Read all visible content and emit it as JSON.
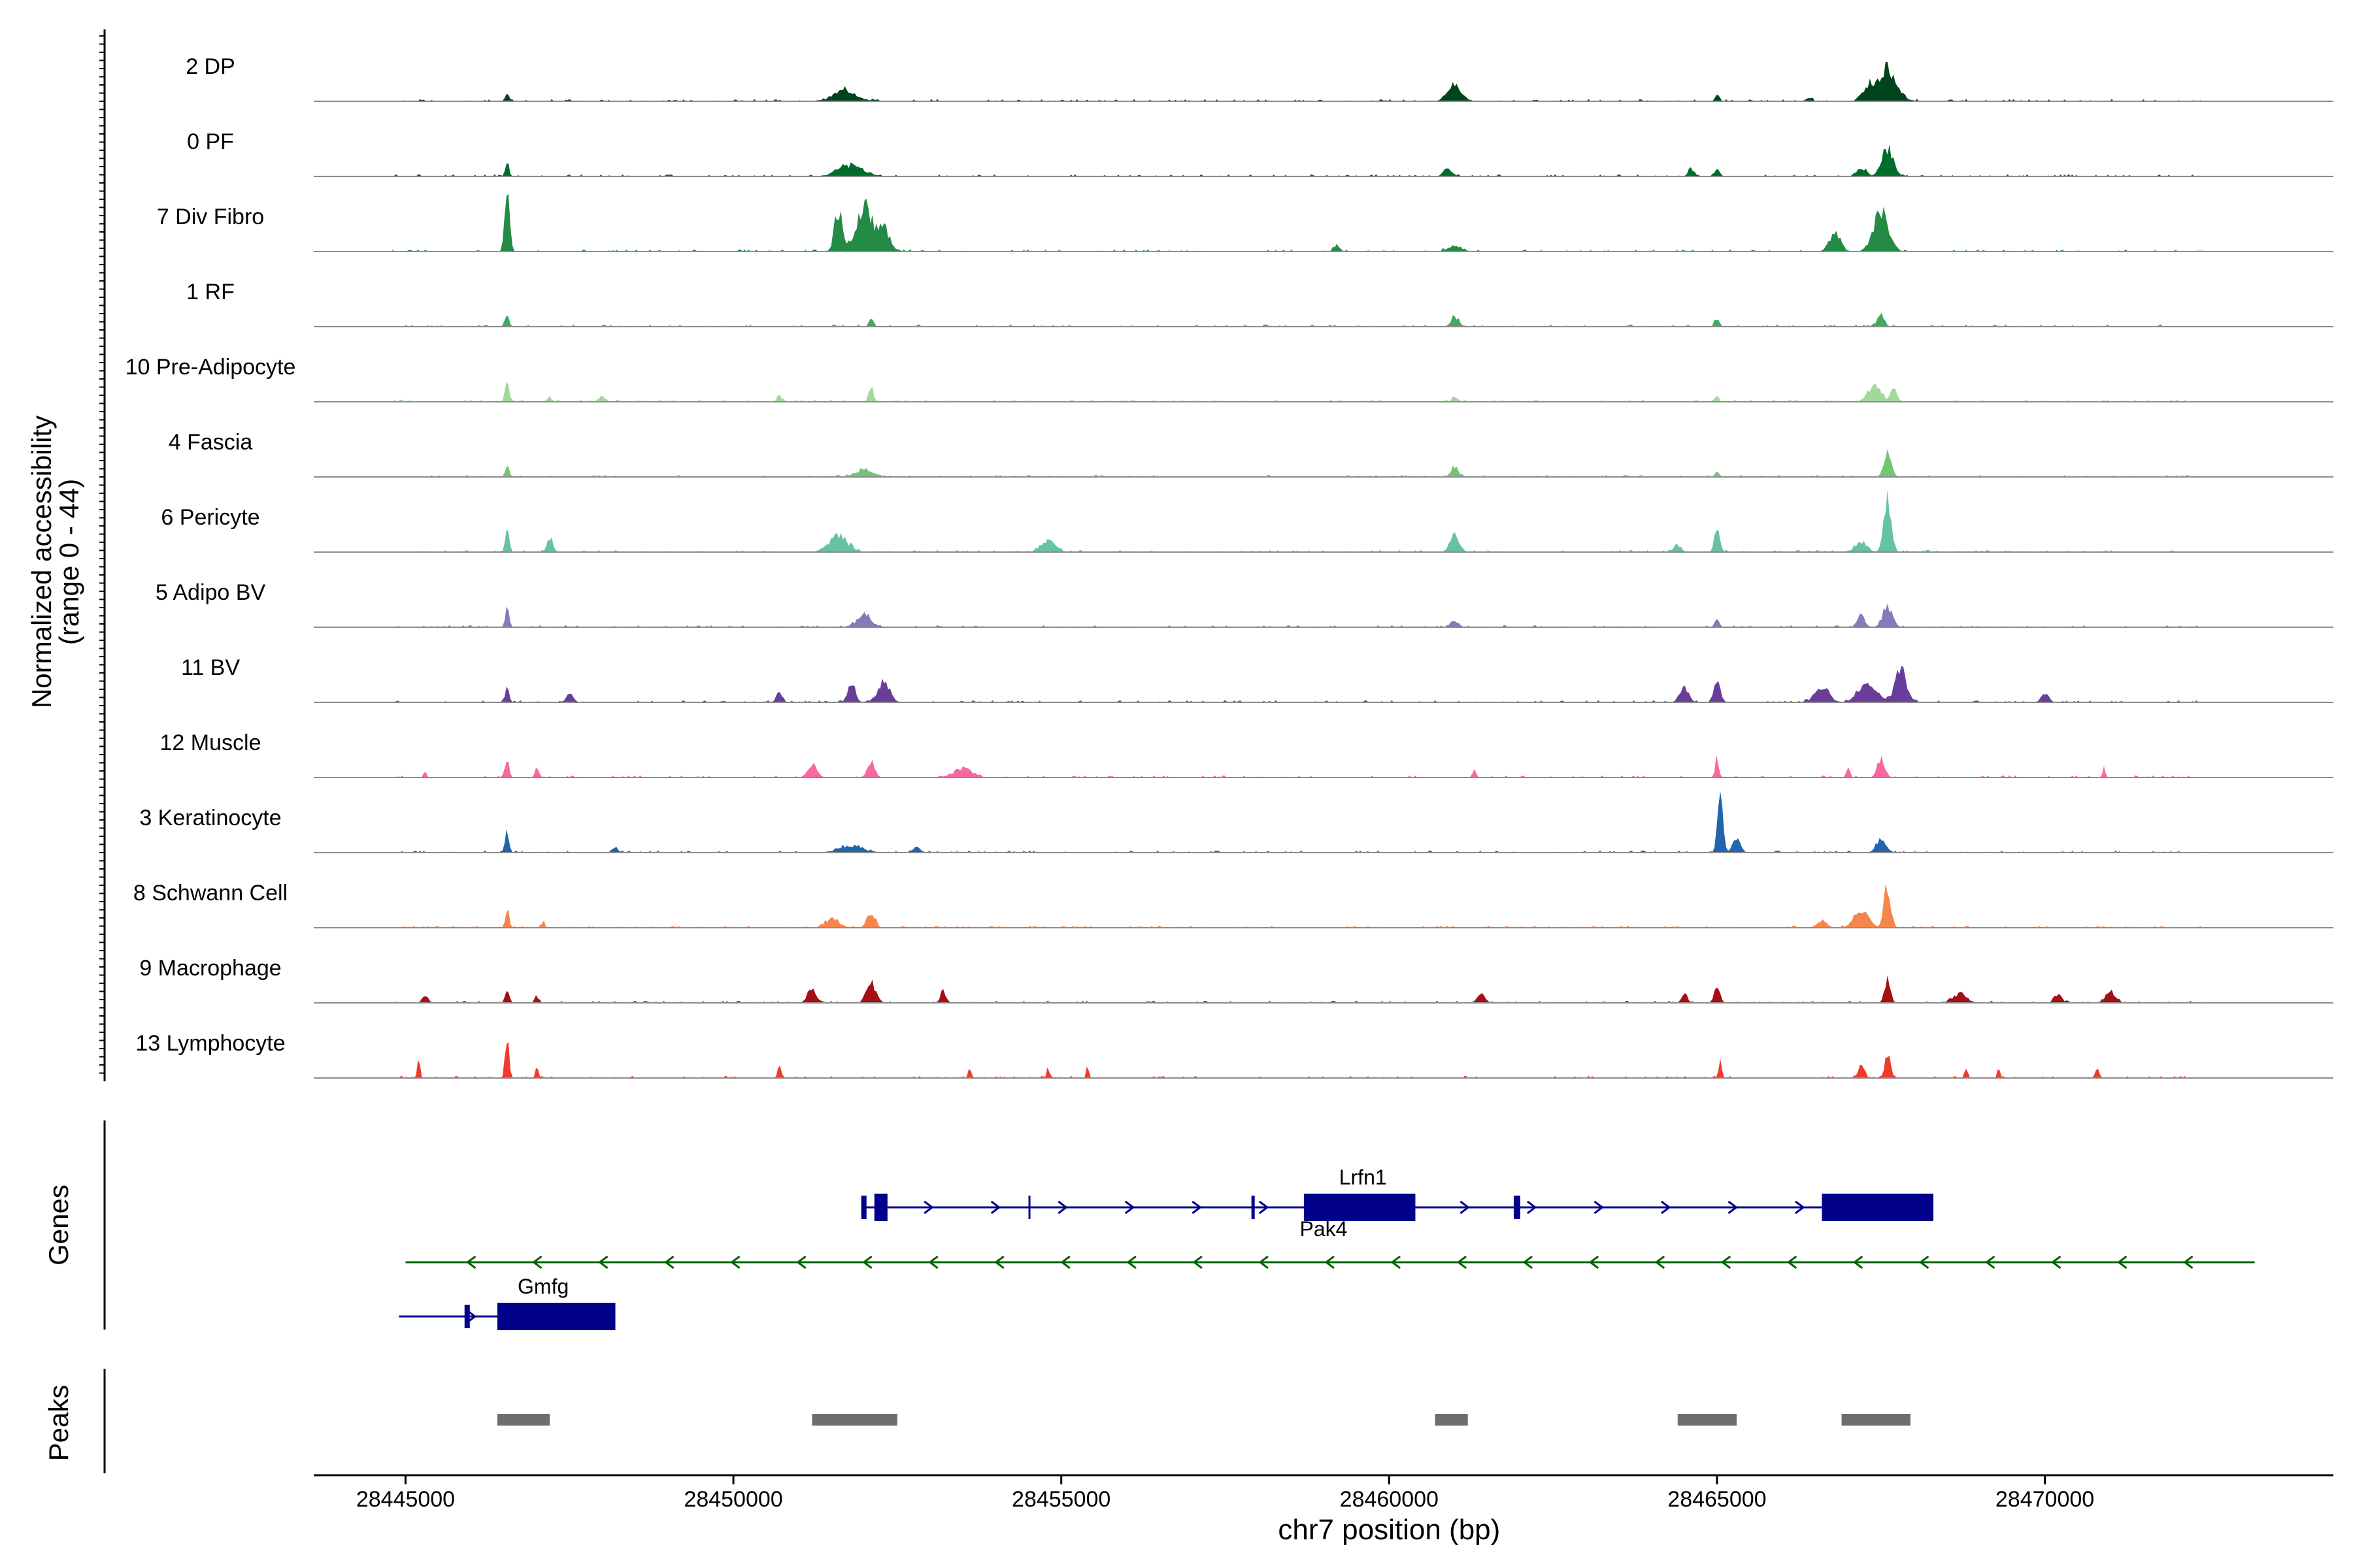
{
  "chart_data": {
    "type": "area",
    "title": "",
    "xlabel": "chr7 position (bp)",
    "ylabel": "Normalized accessibility",
    "ylabel_range": "(range 0 - 44)",
    "xlim": [
      28443600,
      28474400
    ],
    "ylim": [
      0,
      44
    ],
    "x_ticks": [
      28445000,
      28450000,
      28455000,
      28460000,
      28465000,
      28470000
    ],
    "x_tick_labels": [
      "28445000",
      "28450000",
      "28455000",
      "28460000",
      "28465000",
      "28470000"
    ],
    "tracks": [
      {
        "name": "2 DP",
        "color": "#00441b",
        "peaks": [
          [
            28446550,
            0.28,
            40
          ],
          [
            28451700,
            0.3,
            250
          ],
          [
            28461000,
            0.45,
            150
          ],
          [
            28465000,
            0.15,
            40
          ],
          [
            28467600,
            0.9,
            200
          ],
          [
            28467300,
            0.4,
            120
          ],
          [
            28466400,
            0.1,
            60
          ]
        ]
      },
      {
        "name": "0 PF",
        "color": "#006d2c",
        "peaks": [
          [
            28446550,
            0.38,
            40
          ],
          [
            28451800,
            0.3,
            280
          ],
          [
            28460900,
            0.22,
            100
          ],
          [
            28464600,
            0.22,
            60
          ],
          [
            28465000,
            0.22,
            50
          ],
          [
            28467600,
            0.8,
            120
          ],
          [
            28467200,
            0.25,
            100
          ]
        ]
      },
      {
        "name": "7 Div Fibro",
        "color": "#238b45",
        "peaks": [
          [
            28446550,
            1.9,
            50
          ],
          [
            28451600,
            1.2,
            80
          ],
          [
            28452000,
            1.2,
            180
          ],
          [
            28461000,
            0.15,
            150
          ],
          [
            28466800,
            0.5,
            120
          ],
          [
            28467500,
            1.1,
            160
          ],
          [
            28459200,
            0.2,
            60
          ],
          [
            28452300,
            0.6,
            120
          ]
        ]
      },
      {
        "name": "1 RF",
        "color": "#41ab5d",
        "peaks": [
          [
            28446550,
            0.4,
            40
          ],
          [
            28452100,
            0.25,
            40
          ],
          [
            28461000,
            0.3,
            80
          ],
          [
            28465000,
            0.25,
            50
          ],
          [
            28467500,
            0.35,
            70
          ]
        ]
      },
      {
        "name": "10 Pre-Adipocyte",
        "color": "#a1d99b",
        "peaks": [
          [
            28446550,
            0.55,
            40
          ],
          [
            28447200,
            0.2,
            30
          ],
          [
            28450700,
            0.2,
            50
          ],
          [
            28452100,
            0.4,
            50
          ],
          [
            28461000,
            0.15,
            60
          ],
          [
            28465000,
            0.2,
            40
          ],
          [
            28467400,
            0.45,
            140
          ],
          [
            28467700,
            0.5,
            60
          ],
          [
            28448000,
            0.15,
            60
          ]
        ]
      },
      {
        "name": "4 Fascia",
        "color": "#74c476",
        "peaks": [
          [
            28446550,
            0.38,
            40
          ],
          [
            28452000,
            0.2,
            200
          ],
          [
            28461000,
            0.3,
            80
          ],
          [
            28465000,
            0.15,
            40
          ],
          [
            28467600,
            0.65,
            80
          ]
        ]
      },
      {
        "name": "6 Pericyte",
        "color": "#66c2a4",
        "peaks": [
          [
            28446550,
            0.7,
            40
          ],
          [
            28447200,
            0.4,
            60
          ],
          [
            28451600,
            0.45,
            200
          ],
          [
            28461000,
            0.45,
            100
          ],
          [
            28465000,
            0.6,
            60
          ],
          [
            28467600,
            1.5,
            80
          ],
          [
            28467200,
            0.3,
            120
          ],
          [
            28454800,
            0.35,
            150
          ],
          [
            28464400,
            0.2,
            80
          ]
        ]
      },
      {
        "name": "5 Adipo BV",
        "color": "#807dba",
        "peaks": [
          [
            28446550,
            0.55,
            40
          ],
          [
            28452000,
            0.35,
            150
          ],
          [
            28461000,
            0.2,
            80
          ],
          [
            28465000,
            0.2,
            50
          ],
          [
            28467600,
            0.6,
            100
          ],
          [
            28467200,
            0.3,
            80
          ]
        ]
      },
      {
        "name": "11 BV",
        "color": "#6a3d9a",
        "peaks": [
          [
            28446550,
            0.4,
            40
          ],
          [
            28452300,
            0.6,
            120
          ],
          [
            28451800,
            0.5,
            80
          ],
          [
            28450700,
            0.3,
            60
          ],
          [
            28465000,
            0.7,
            60
          ],
          [
            28464500,
            0.4,
            100
          ],
          [
            28467300,
            0.5,
            200
          ],
          [
            28467800,
            0.9,
            120
          ],
          [
            28466600,
            0.4,
            150
          ],
          [
            28470000,
            0.25,
            80
          ],
          [
            28447500,
            0.2,
            80
          ]
        ]
      },
      {
        "name": "12 Muscle",
        "color": "#f768a1",
        "peaks": [
          [
            28446550,
            0.55,
            40
          ],
          [
            28447000,
            0.3,
            40
          ],
          [
            28451200,
            0.35,
            100
          ],
          [
            28452100,
            0.45,
            80
          ],
          [
            28453500,
            0.25,
            200
          ],
          [
            28465000,
            0.55,
            40
          ],
          [
            28467500,
            0.55,
            80
          ],
          [
            28467000,
            0.25,
            40
          ],
          [
            28461300,
            0.2,
            40
          ],
          [
            28470900,
            0.25,
            30
          ],
          [
            28445300,
            0.15,
            30
          ]
        ]
      },
      {
        "name": "3 Keratinocyte",
        "color": "#2166ac",
        "peaks": [
          [
            28446550,
            0.6,
            40
          ],
          [
            28465050,
            1.5,
            60
          ],
          [
            28465300,
            0.4,
            80
          ],
          [
            28467500,
            0.35,
            100
          ],
          [
            28451800,
            0.2,
            250
          ],
          [
            28448200,
            0.15,
            60
          ],
          [
            28452800,
            0.15,
            80
          ]
        ]
      },
      {
        "name": "8 Schwann Cell",
        "color": "#f4874b",
        "peaks": [
          [
            28446550,
            0.55,
            40
          ],
          [
            28447100,
            0.2,
            30
          ],
          [
            28452100,
            0.45,
            80
          ],
          [
            28451500,
            0.25,
            150
          ],
          [
            28467600,
            1.2,
            70
          ],
          [
            28467200,
            0.5,
            150
          ],
          [
            28466600,
            0.2,
            100
          ]
        ]
      },
      {
        "name": "9 Macrophage",
        "color": "#a50f15",
        "peaks": [
          [
            28446550,
            0.45,
            40
          ],
          [
            28445300,
            0.2,
            60
          ],
          [
            28451200,
            0.35,
            100
          ],
          [
            28452100,
            0.55,
            100
          ],
          [
            28453200,
            0.35,
            60
          ],
          [
            28461400,
            0.25,
            80
          ],
          [
            28465000,
            0.55,
            60
          ],
          [
            28464500,
            0.3,
            60
          ],
          [
            28467600,
            0.65,
            60
          ],
          [
            28468700,
            0.25,
            150
          ],
          [
            28471000,
            0.3,
            100
          ],
          [
            28447000,
            0.2,
            40
          ],
          [
            28470200,
            0.25,
            80
          ]
        ]
      },
      {
        "name": "13 Lymphocyte",
        "color": "#ef3b2c",
        "peaks": [
          [
            28446550,
            1.3,
            40
          ],
          [
            28445200,
            0.5,
            30
          ],
          [
            28447000,
            0.3,
            30
          ],
          [
            28450700,
            0.3,
            40
          ],
          [
            28453600,
            0.3,
            30
          ],
          [
            28454800,
            0.3,
            30
          ],
          [
            28455400,
            0.3,
            30
          ],
          [
            28465050,
            0.45,
            30
          ],
          [
            28467600,
            0.7,
            60
          ],
          [
            28467200,
            0.4,
            60
          ],
          [
            28468800,
            0.3,
            30
          ],
          [
            28469300,
            0.3,
            30
          ],
          [
            28470800,
            0.3,
            40
          ]
        ]
      }
    ],
    "genes": {
      "panel_label": "Genes",
      "items": [
        {
          "name": "Lrfn1",
          "strand": "+",
          "start": 28451950,
          "end": 28468300,
          "row": 0,
          "color": "#00008b",
          "exons": [
            [
              28451950,
              28452030
            ],
            [
              28452150,
              28452350
            ],
            [
              28454500,
              28454530
            ],
            [
              28457900,
              28457950
            ],
            [
              28458700,
              28460400
            ],
            [
              28461900,
              28462000
            ],
            [
              28466600,
              28468300
            ]
          ]
        },
        {
          "name": "Pak4",
          "strand": "-",
          "start": 28445000,
          "end": 28473200,
          "row": 1,
          "color": "#006400",
          "exons": []
        },
        {
          "name": "Gmfg",
          "strand": "+",
          "start": 28444900,
          "end": 28448200,
          "row": 2,
          "color": "#00008b",
          "exons": [
            [
              28445900,
              28445980
            ],
            [
              28446400,
              28448200
            ]
          ]
        }
      ]
    },
    "peaks_panel": {
      "label": "Peaks",
      "color": "#6e6e6e",
      "regions": [
        [
          28446400,
          28447200
        ],
        [
          28451200,
          28452500
        ],
        [
          28460700,
          28461200
        ],
        [
          28464400,
          28465300
        ],
        [
          28466900,
          28467950
        ]
      ]
    }
  }
}
